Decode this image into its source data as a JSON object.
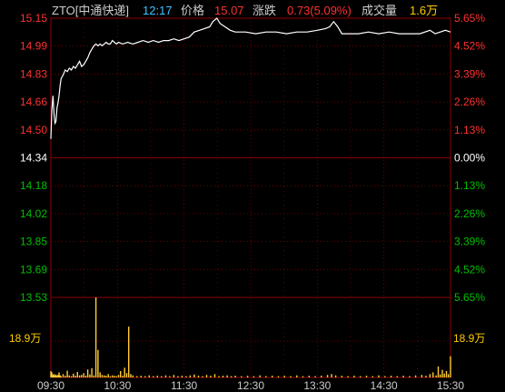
{
  "header": {
    "symbol": "ZTO[中通快递]",
    "time": "12:17",
    "price_label": "价格",
    "price_value": "15.07",
    "change_label": "涨跌",
    "change_value": "0.73(5.09%)",
    "volume_label": "成交量",
    "volume_value": "1.6万"
  },
  "colors": {
    "background": "#000000",
    "grid": "#8b0000",
    "up": "#ff3030",
    "down": "#00c000",
    "neutral": "#ffffff",
    "header_text": "#cccccc",
    "time_text": "#40c0ff",
    "volume_up": "#ffcc33",
    "volume_label": "#ffcc00",
    "price_line": "#ffffff"
  },
  "chart_data": {
    "type": "line",
    "price_axis": {
      "left_labels": [
        "15.15",
        "14.99",
        "14.83",
        "14.66",
        "14.50",
        "14.34",
        "14.18",
        "14.02",
        "13.85",
        "13.69",
        "13.53"
      ],
      "right_labels": [
        "5.65%",
        "4.52%",
        "3.39%",
        "2.26%",
        "1.13%",
        "0.00%",
        "1.13%",
        "2.26%",
        "3.39%",
        "4.52%",
        "5.65%"
      ],
      "ylim": [
        13.53,
        15.15
      ],
      "prev_close": 14.34
    },
    "volume_axis": {
      "label": "18.9万",
      "max": 18.9,
      "unit": "万"
    },
    "time_labels": [
      "09:30",
      "10:30",
      "11:30",
      "12:30",
      "13:30",
      "14:30",
      "15:30"
    ],
    "minutes_total": 390,
    "price_points": [
      [
        0,
        14.45
      ],
      [
        1,
        14.62
      ],
      [
        2,
        14.7
      ],
      [
        3,
        14.6
      ],
      [
        4,
        14.54
      ],
      [
        5,
        14.55
      ],
      [
        6,
        14.63
      ],
      [
        7,
        14.66
      ],
      [
        8,
        14.7
      ],
      [
        9,
        14.76
      ],
      [
        10,
        14.8
      ],
      [
        12,
        14.82
      ],
      [
        14,
        14.85
      ],
      [
        16,
        14.84
      ],
      [
        18,
        14.86
      ],
      [
        20,
        14.85
      ],
      [
        22,
        14.87
      ],
      [
        24,
        14.86
      ],
      [
        26,
        14.88
      ],
      [
        28,
        14.9
      ],
      [
        30,
        14.87
      ],
      [
        32,
        14.88
      ],
      [
        34,
        14.9
      ],
      [
        36,
        14.92
      ],
      [
        38,
        14.95
      ],
      [
        40,
        14.97
      ],
      [
        42,
        14.99
      ],
      [
        44,
        15.0
      ],
      [
        46,
        14.99
      ],
      [
        48,
        15.0
      ],
      [
        50,
        14.99
      ],
      [
        52,
        15.0
      ],
      [
        54,
        15.01
      ],
      [
        56,
        15.0
      ],
      [
        58,
        15.0
      ],
      [
        60,
        15.02
      ],
      [
        62,
        15.01
      ],
      [
        64,
        15.0
      ],
      [
        66,
        15.01
      ],
      [
        70,
        15.0
      ],
      [
        75,
        15.01
      ],
      [
        80,
        15.0
      ],
      [
        85,
        15.01
      ],
      [
        90,
        15.02
      ],
      [
        95,
        15.01
      ],
      [
        100,
        15.02
      ],
      [
        105,
        15.01
      ],
      [
        110,
        15.02
      ],
      [
        115,
        15.02
      ],
      [
        120,
        15.03
      ],
      [
        125,
        15.02
      ],
      [
        130,
        15.03
      ],
      [
        135,
        15.04
      ],
      [
        140,
        15.07
      ],
      [
        145,
        15.08
      ],
      [
        150,
        15.09
      ],
      [
        155,
        15.1
      ],
      [
        158,
        15.13
      ],
      [
        162,
        15.15
      ],
      [
        165,
        15.12
      ],
      [
        170,
        15.1
      ],
      [
        175,
        15.08
      ],
      [
        180,
        15.07
      ],
      [
        190,
        15.07
      ],
      [
        200,
        15.06
      ],
      [
        210,
        15.07
      ],
      [
        220,
        15.07
      ],
      [
        230,
        15.06
      ],
      [
        240,
        15.07
      ],
      [
        250,
        15.07
      ],
      [
        260,
        15.08
      ],
      [
        268,
        15.09
      ],
      [
        272,
        15.1
      ],
      [
        276,
        15.13
      ],
      [
        280,
        15.1
      ],
      [
        284,
        15.06
      ],
      [
        290,
        15.06
      ],
      [
        300,
        15.06
      ],
      [
        310,
        15.07
      ],
      [
        320,
        15.06
      ],
      [
        330,
        15.07
      ],
      [
        340,
        15.06
      ],
      [
        350,
        15.06
      ],
      [
        360,
        15.06
      ],
      [
        370,
        15.08
      ],
      [
        375,
        15.06
      ],
      [
        380,
        15.07
      ],
      [
        385,
        15.08
      ],
      [
        390,
        15.07
      ]
    ],
    "volume_points": [
      [
        0,
        1.5
      ],
      [
        1,
        1.2
      ],
      [
        2,
        0.6
      ],
      [
        3,
        0.8
      ],
      [
        4,
        0.5
      ],
      [
        5,
        0.7
      ],
      [
        6,
        0.4
      ],
      [
        7,
        0.6
      ],
      [
        8,
        1.2
      ],
      [
        9,
        0.5
      ],
      [
        10,
        0.3
      ],
      [
        12,
        0.8
      ],
      [
        14,
        0.4
      ],
      [
        16,
        1.6
      ],
      [
        18,
        0.5
      ],
      [
        20,
        0.3
      ],
      [
        22,
        0.9
      ],
      [
        24,
        0.4
      ],
      [
        26,
        1.3
      ],
      [
        28,
        0.5
      ],
      [
        30,
        0.6
      ],
      [
        32,
        1.0
      ],
      [
        34,
        0.4
      ],
      [
        36,
        1.9
      ],
      [
        38,
        0.7
      ],
      [
        40,
        2.2
      ],
      [
        42,
        0.5
      ],
      [
        44,
        18.9
      ],
      [
        46,
        6.5
      ],
      [
        48,
        1.2
      ],
      [
        50,
        0.6
      ],
      [
        52,
        0.5
      ],
      [
        54,
        0.4
      ],
      [
        56,
        0.8
      ],
      [
        58,
        0.3
      ],
      [
        60,
        0.5
      ],
      [
        62,
        0.4
      ],
      [
        64,
        0.3
      ],
      [
        66,
        0.6
      ],
      [
        68,
        1.5
      ],
      [
        70,
        0.4
      ],
      [
        72,
        2.3
      ],
      [
        74,
        1.0
      ],
      [
        76,
        12.0
      ],
      [
        78,
        0.8
      ],
      [
        80,
        0.5
      ],
      [
        84,
        0.3
      ],
      [
        88,
        0.4
      ],
      [
        92,
        0.3
      ],
      [
        96,
        0.5
      ],
      [
        100,
        0.3
      ],
      [
        104,
        0.4
      ],
      [
        108,
        0.3
      ],
      [
        112,
        0.5
      ],
      [
        116,
        0.3
      ],
      [
        120,
        0.6
      ],
      [
        124,
        0.3
      ],
      [
        128,
        0.4
      ],
      [
        132,
        0.3
      ],
      [
        136,
        0.5
      ],
      [
        140,
        0.7
      ],
      [
        144,
        0.4
      ],
      [
        148,
        0.3
      ],
      [
        152,
        0.6
      ],
      [
        156,
        0.4
      ],
      [
        160,
        0.8
      ],
      [
        164,
        0.3
      ],
      [
        168,
        0.4
      ],
      [
        172,
        0.5
      ],
      [
        176,
        0.3
      ],
      [
        180,
        0.4
      ],
      [
        186,
        0.3
      ],
      [
        192,
        0.4
      ],
      [
        198,
        0.3
      ],
      [
        204,
        0.5
      ],
      [
        210,
        0.3
      ],
      [
        216,
        0.4
      ],
      [
        222,
        0.3
      ],
      [
        228,
        0.4
      ],
      [
        234,
        0.3
      ],
      [
        240,
        0.5
      ],
      [
        246,
        0.3
      ],
      [
        252,
        0.4
      ],
      [
        258,
        0.3
      ],
      [
        264,
        0.4
      ],
      [
        270,
        0.6
      ],
      [
        274,
        0.8
      ],
      [
        278,
        0.5
      ],
      [
        284,
        0.4
      ],
      [
        290,
        0.3
      ],
      [
        296,
        0.4
      ],
      [
        302,
        0.3
      ],
      [
        308,
        0.4
      ],
      [
        314,
        0.3
      ],
      [
        320,
        0.5
      ],
      [
        326,
        0.3
      ],
      [
        332,
        0.4
      ],
      [
        338,
        0.3
      ],
      [
        344,
        0.4
      ],
      [
        350,
        0.3
      ],
      [
        356,
        0.5
      ],
      [
        362,
        0.6
      ],
      [
        366,
        0.4
      ],
      [
        370,
        0.8
      ],
      [
        373,
        1.2
      ],
      [
        376,
        0.5
      ],
      [
        378,
        2.6
      ],
      [
        380,
        0.7
      ],
      [
        382,
        1.8
      ],
      [
        384,
        0.9
      ],
      [
        386,
        1.5
      ],
      [
        388,
        0.8
      ],
      [
        390,
        5.0
      ]
    ]
  }
}
